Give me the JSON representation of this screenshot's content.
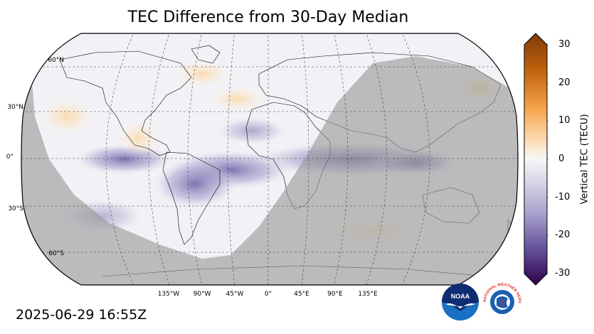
{
  "title": "TEC Difference from 30-Day Median",
  "timestamp": "2025-06-29 16:55Z",
  "colorbar": {
    "label": "Vertical TEC (TECU)",
    "ticks": [
      "30",
      "20",
      "10",
      "0",
      "-10",
      "-20",
      "-30"
    ],
    "range": [
      -30,
      30
    ],
    "colors": {
      "max": "#7f3b08",
      "mid": "#f7f7f7",
      "min": "#2d004b"
    }
  },
  "map": {
    "projection": "Robinson",
    "lat_labels": [
      "60°N",
      "30°N",
      "0°",
      "30°S",
      "60°S"
    ],
    "lon_labels": [
      "135°W",
      "90°W",
      "45°W",
      "0°",
      "45°E",
      "90°E",
      "135°E"
    ],
    "night_shade_color": "#b0b0b0",
    "ocean_color": "#f2f2f6"
  },
  "logos": {
    "noaa": {
      "text": "NOAA",
      "icon": "noaa-logo"
    },
    "nws": {
      "text": "NATIONAL WEATHER SERVICE",
      "icon": "nws-logo"
    }
  }
}
